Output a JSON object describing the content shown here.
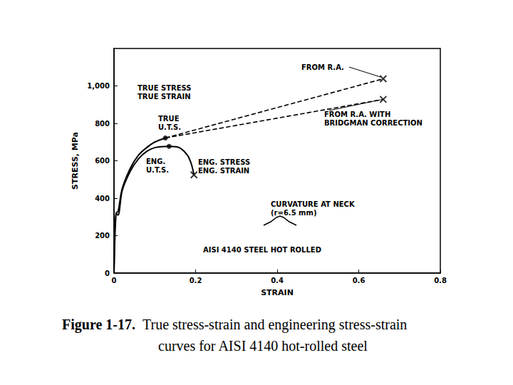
{
  "chart_data": {
    "type": "line",
    "caption": {
      "label": "Figure 1-17.",
      "lines": [
        "True stress-strain and engineering stress-strain",
        "curves for AISI 4140 hot-rolled steel"
      ]
    },
    "x_label": "STRAIN",
    "y_label": "STRESS, MPa",
    "xlim": [
      0,
      0.8
    ],
    "xticks": [
      0,
      0.2,
      0.4,
      0.6,
      0.8
    ],
    "ylim": [
      0,
      1200
    ],
    "yticks": [
      0,
      200,
      400,
      600,
      800,
      {
        "value": 1000,
        "label": "1,000"
      }
    ],
    "grid": false,
    "annotations": [
      "TRUE STRESS\nTRUE STRAIN",
      "TRUE\nU.T.S.",
      "ENG.\nU.T.S.",
      "ENG. STRESS\nENG. STRAIN",
      "FROM R.A.",
      "FROM R.A. WITH\nBRIDGMAN CORRECTION",
      "CURVATURE AT NECK\n(r=6.5 mm)",
      "AISI 4140 STEEL HOT ROLLED"
    ],
    "series": [
      {
        "type": "line",
        "color": "#000000",
        "line_style": "solid",
        "marker": "none",
        "x": [
          0,
          0.005,
          0.01,
          0.02,
          0.04,
          0.06,
          0.08,
          0.1,
          0.126
        ],
        "values": [
          0,
          320,
          330,
          450,
          560,
          630,
          670,
          700,
          722
        ]
      },
      {
        "type": "line",
        "color": "#000000",
        "line_style": "solid",
        "marker": "none",
        "x": [
          0,
          0.005,
          0.01,
          0.02,
          0.04,
          0.06,
          0.08,
          0.1,
          0.135,
          0.16,
          0.18,
          0.19,
          0.196
        ],
        "values": [
          0,
          320,
          310,
          440,
          545,
          610,
          650,
          670,
          677,
          670,
          630,
          580,
          525
        ]
      },
      {
        "type": "line",
        "color": "#000000",
        "line_style": "dashed",
        "marker": "none",
        "x": [
          0.126,
          0.66
        ],
        "values": [
          722,
          1038
        ]
      },
      {
        "type": "line",
        "color": "#000000",
        "line_style": "dashed",
        "marker": "none",
        "x": [
          0.126,
          0.66
        ],
        "values": [
          722,
          928
        ]
      },
      {
        "type": "scatter",
        "color": "#000000",
        "marker": "circle",
        "x": [
          0.126,
          0.135
        ],
        "values": [
          722,
          677
        ]
      },
      {
        "type": "scatter",
        "color": "#000000",
        "marker": "x",
        "x": [
          0.196,
          0.66,
          0.66
        ],
        "values": [
          525,
          1038,
          928
        ]
      }
    ]
  }
}
